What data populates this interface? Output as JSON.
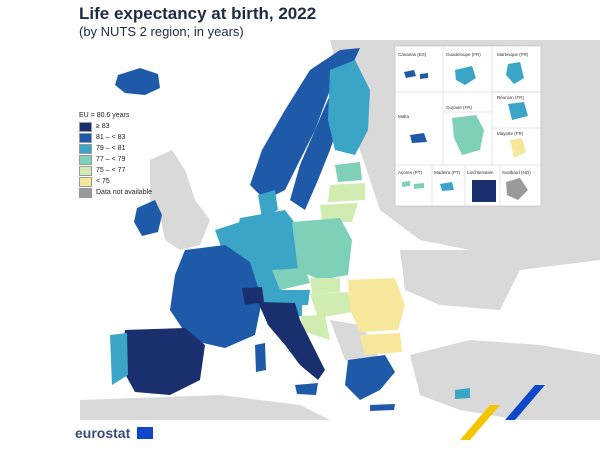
{
  "title": "Life expectancy at birth, 2022",
  "subtitle": "(by NUTS 2 region; in years)",
  "legend": {
    "header": "EU = 80.6 years",
    "items": [
      {
        "label": "≥ 83",
        "color": "#1a2f6e"
      },
      {
        "label": "81 – < 83",
        "color": "#1e5aa8"
      },
      {
        "label": "79 – < 81",
        "color": "#3aa5c6"
      },
      {
        "label": "77 – < 79",
        "color": "#7fd0b8"
      },
      {
        "label": "75 – < 77",
        "color": "#d1ecb0"
      },
      {
        "label": "< 75",
        "color": "#f7e79a"
      },
      {
        "label": "Data not available",
        "color": "#9a9a9a"
      }
    ]
  },
  "insets": [
    "Canarias (ES)",
    "Guadeloupe (FR)",
    "Martinique (FR)",
    "Guyane (FR)",
    "Réunion (FR)",
    "Malta",
    "Mayotte (FR)",
    "Açores (PT)",
    "Madeira (PT)",
    "Liechtenstein",
    "Svalbard (NO)"
  ],
  "footer": "eurostat",
  "colors": {
    "land_nondata": "#d9d9d9",
    "sea": "#ffffff",
    "accent_yellow": "#f5c400",
    "accent_blue": "#0e47cb"
  }
}
